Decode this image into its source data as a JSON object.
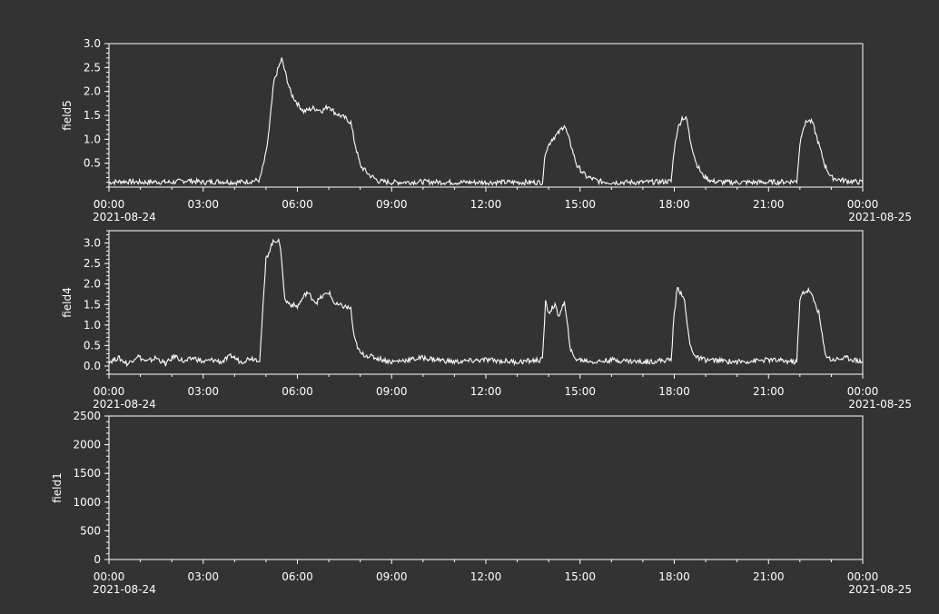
{
  "theme": {
    "background": "#333333",
    "foreground": "#ffffff"
  },
  "chart_data": [
    {
      "type": "line",
      "ylabel": "field5",
      "ylim": [
        0,
        3.0
      ],
      "yticks": [
        "0.5",
        "1.0",
        "1.5",
        "2.0",
        "2.5",
        "3.0"
      ],
      "xrange": [
        "2021-08-24 00:00",
        "2021-08-25 00:00"
      ],
      "xticks": [
        "00:00",
        "03:00",
        "06:00",
        "09:00",
        "12:00",
        "15:00",
        "18:00",
        "21:00",
        "00:00"
      ],
      "date_left": "2021-08-24",
      "date_right": "2021-08-25",
      "series": [
        {
          "x_hours": [
            0,
            0.5,
            1,
            1.5,
            2,
            2.5,
            3,
            3.5,
            4,
            4.5,
            4.8,
            5.0,
            5.1,
            5.25,
            5.4,
            5.5,
            5.65,
            5.8,
            6.0,
            6.2,
            6.5,
            6.8,
            7.0,
            7.2,
            7.5,
            7.7,
            7.8,
            8.0,
            8.3,
            8.6,
            9,
            10,
            11,
            12,
            13,
            13.8,
            13.9,
            14.1,
            14.3,
            14.5,
            14.7,
            14.9,
            15.2,
            15.6,
            16,
            17,
            17.9,
            18.0,
            18.1,
            18.25,
            18.4,
            18.5,
            18.7,
            18.9,
            19.2,
            19.6,
            20,
            21,
            21.9,
            22.0,
            22.1,
            22.25,
            22.4,
            22.6,
            22.8,
            23,
            23.3,
            23.6,
            24
          ],
          "y": [
            0.1,
            0.12,
            0.1,
            0.11,
            0.1,
            0.14,
            0.1,
            0.12,
            0.1,
            0.12,
            0.15,
            0.7,
            1.2,
            2.2,
            2.5,
            2.68,
            2.3,
            1.95,
            1.75,
            1.58,
            1.65,
            1.6,
            1.7,
            1.55,
            1.45,
            1.35,
            1.0,
            0.45,
            0.25,
            0.12,
            0.1,
            0.11,
            0.1,
            0.1,
            0.1,
            0.1,
            0.75,
            1.0,
            1.12,
            1.3,
            0.9,
            0.45,
            0.22,
            0.12,
            0.1,
            0.1,
            0.12,
            0.8,
            1.2,
            1.45,
            1.42,
            1.0,
            0.5,
            0.25,
            0.12,
            0.1,
            0.1,
            0.1,
            0.12,
            0.9,
            1.25,
            1.4,
            1.35,
            0.9,
            0.45,
            0.2,
            0.15,
            0.12,
            0.1
          ]
        }
      ]
    },
    {
      "type": "line",
      "ylabel": "field4",
      "ylim": [
        -0.2,
        3.3
      ],
      "yticks": [
        "0.0",
        "0.5",
        "1.0",
        "1.5",
        "2.0",
        "2.5",
        "3.0"
      ],
      "xrange": [
        "2021-08-24 00:00",
        "2021-08-25 00:00"
      ],
      "xticks": [
        "00:00",
        "03:00",
        "06:00",
        "09:00",
        "12:00",
        "15:00",
        "18:00",
        "21:00",
        "00:00"
      ],
      "date_left": "2021-08-24",
      "date_right": "2021-08-25",
      "series": [
        {
          "x_hours": [
            0,
            0.3,
            0.6,
            0.9,
            1.2,
            1.5,
            1.8,
            2.1,
            2.4,
            2.7,
            3,
            3.3,
            3.6,
            3.9,
            4.2,
            4.5,
            4.8,
            4.9,
            5.0,
            5.2,
            5.4,
            5.5,
            5.6,
            5.8,
            6.0,
            6.3,
            6.6,
            6.8,
            7.0,
            7.2,
            7.5,
            7.7,
            7.8,
            8.0,
            8.5,
            9,
            10,
            11,
            12,
            13,
            13.8,
            13.9,
            14.0,
            14.2,
            14.3,
            14.5,
            14.7,
            14.8,
            15.0,
            15.5,
            16,
            17,
            17.9,
            18.0,
            18.1,
            18.3,
            18.5,
            18.7,
            19,
            20,
            21,
            21.9,
            22.0,
            22.1,
            22.3,
            22.5,
            22.6,
            22.8,
            23,
            23.5,
            24
          ],
          "y": [
            0.1,
            0.2,
            0.05,
            0.25,
            0.1,
            0.2,
            0.05,
            0.25,
            0.1,
            0.2,
            0.1,
            0.15,
            0.1,
            0.25,
            0.1,
            0.2,
            0.15,
            1.4,
            2.6,
            3.0,
            3.1,
            2.6,
            1.6,
            1.5,
            1.45,
            1.8,
            1.55,
            1.7,
            1.8,
            1.5,
            1.45,
            1.4,
            0.7,
            0.3,
            0.2,
            0.1,
            0.2,
            0.1,
            0.15,
            0.1,
            0.15,
            1.55,
            1.3,
            1.5,
            1.2,
            1.55,
            0.4,
            0.2,
            0.15,
            0.1,
            0.15,
            0.1,
            0.15,
            1.3,
            1.9,
            1.7,
            0.5,
            0.2,
            0.15,
            0.1,
            0.15,
            0.1,
            1.6,
            1.8,
            1.85,
            1.5,
            1.3,
            0.3,
            0.15,
            0.2,
            0.1
          ]
        }
      ]
    },
    {
      "type": "line",
      "ylabel": "field1",
      "ylim": [
        0,
        2500
      ],
      "yticks": [
        "0",
        "500",
        "1000",
        "1500",
        "2000",
        "2500"
      ],
      "xrange": [
        "2021-08-24 00:00",
        "2021-08-25 00:00"
      ],
      "xticks": [
        "00:00",
        "03:00",
        "06:00",
        "09:00",
        "12:00",
        "15:00",
        "18:00",
        "21:00",
        "00:00"
      ],
      "date_left": "2021-08-24",
      "date_right": "2021-08-25",
      "series": [
        {
          "x_hours": [],
          "y": []
        }
      ]
    }
  ]
}
